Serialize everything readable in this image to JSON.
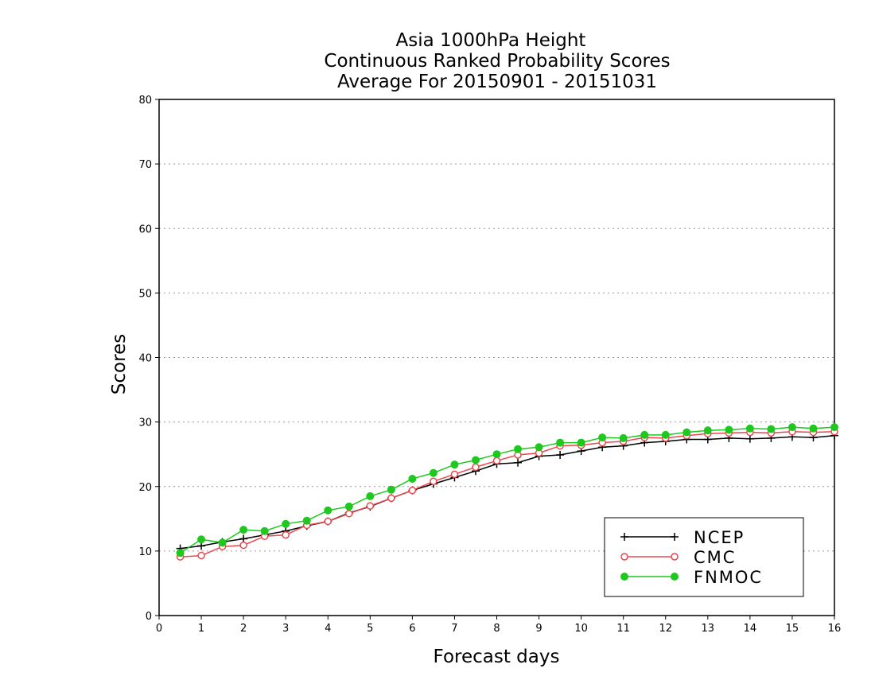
{
  "chart_data": {
    "type": "line",
    "title_lines": [
      "Asia 1000hPa Height",
      "Continuous Ranked Probability Scores",
      "Average For 20150901 - 20151031"
    ],
    "xlabel": "Forecast days",
    "ylabel": "Scores",
    "xlim": [
      0,
      16
    ],
    "ylim": [
      0,
      80
    ],
    "x_ticks": [
      0,
      1,
      2,
      3,
      4,
      5,
      6,
      7,
      8,
      9,
      10,
      11,
      12,
      13,
      14,
      15,
      16
    ],
    "y_ticks": [
      0,
      10,
      20,
      30,
      40,
      50,
      60,
      70,
      80
    ],
    "grid": "horizontal dotted",
    "legend_position": "bottom-right",
    "x": [
      0.5,
      1,
      1.5,
      2,
      2.5,
      3,
      3.5,
      4,
      4.5,
      5,
      5.5,
      6,
      6.5,
      7,
      7.5,
      8,
      8.5,
      9,
      9.5,
      10,
      10.5,
      11,
      11.5,
      12,
      12.5,
      13,
      13.5,
      14,
      14.5,
      15,
      15.5,
      16
    ],
    "series": [
      {
        "name": "NCEP",
        "color": "#000000",
        "marker": "plus",
        "values": [
          10.4,
          10.8,
          11.4,
          11.9,
          12.5,
          13.1,
          13.9,
          14.6,
          15.9,
          16.9,
          18.2,
          19.4,
          20.4,
          21.4,
          22.4,
          23.5,
          23.7,
          24.7,
          24.9,
          25.5,
          26.1,
          26.3,
          26.8,
          27.0,
          27.3,
          27.3,
          27.5,
          27.4,
          27.5,
          27.7,
          27.6,
          27.9
        ]
      },
      {
        "name": "CMC",
        "color": "#e8484e",
        "marker": "open-circle",
        "values": [
          9.1,
          9.3,
          10.7,
          10.9,
          12.3,
          12.5,
          14.0,
          14.6,
          15.8,
          17.0,
          18.2,
          19.4,
          20.8,
          21.9,
          23.0,
          24.0,
          24.9,
          25.2,
          26.3,
          26.4,
          26.8,
          27.0,
          27.6,
          27.5,
          27.9,
          28.2,
          28.3,
          28.4,
          28.3,
          28.5,
          28.4,
          28.5
        ]
      },
      {
        "name": "FNMOC",
        "color": "#1ec81e",
        "marker": "filled-circle",
        "values": [
          9.7,
          11.8,
          11.3,
          13.3,
          13.1,
          14.2,
          14.7,
          16.3,
          16.9,
          18.5,
          19.5,
          21.2,
          22.1,
          23.4,
          24.1,
          25.0,
          25.8,
          26.1,
          26.8,
          26.8,
          27.6,
          27.5,
          28.0,
          28.0,
          28.4,
          28.7,
          28.8,
          29.0,
          28.9,
          29.2,
          29.0,
          29.2
        ]
      }
    ]
  }
}
